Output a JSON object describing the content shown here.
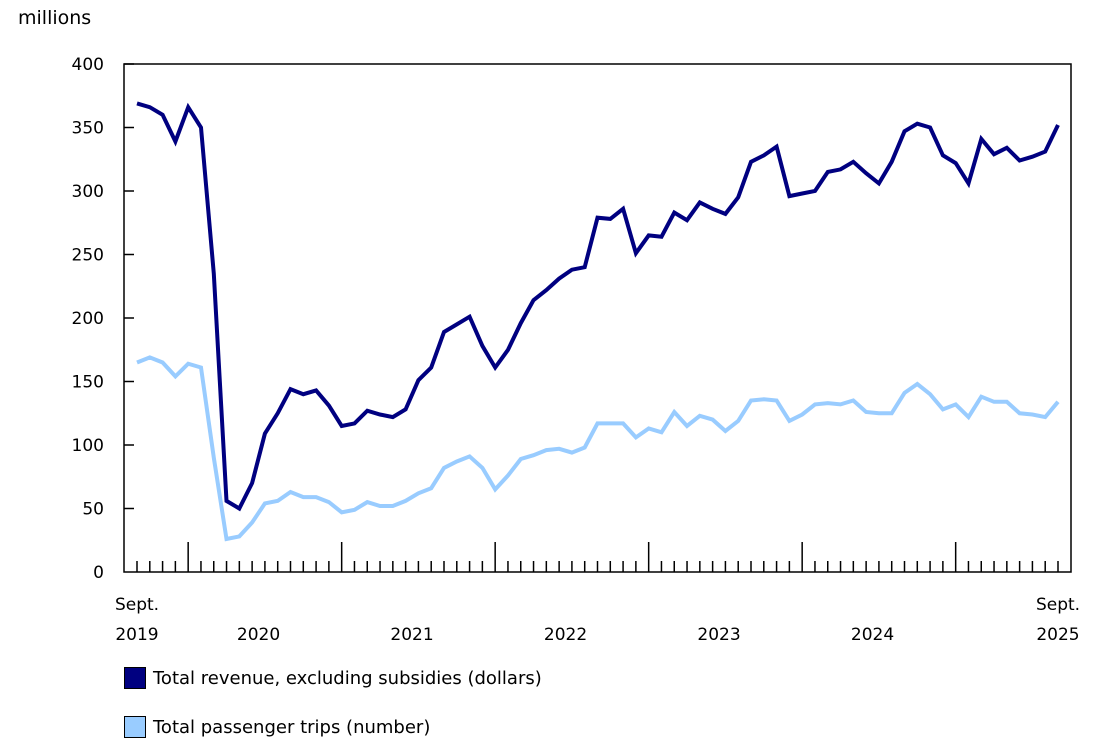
{
  "chart_data": {
    "type": "line",
    "ylabel": "millions",
    "ylim": [
      0,
      400
    ],
    "yticks": [
      "0",
      "50",
      "100",
      "150",
      "200",
      "250",
      "300",
      "350",
      "400"
    ],
    "x_start": "Sept. 2019",
    "x_end": "Sept. 2025",
    "x_labels": [
      {
        "line1": "Sept.",
        "line2": "2019"
      },
      {
        "line1": "",
        "line2": "2020"
      },
      {
        "line1": "",
        "line2": "2021"
      },
      {
        "line1": "",
        "line2": "2022"
      },
      {
        "line1": "",
        "line2": "2023"
      },
      {
        "line1": "",
        "line2": "2024"
      },
      {
        "line1": "Sept.",
        "line2": "2025"
      }
    ],
    "grid": false,
    "legend_position": "bottom",
    "series": [
      {
        "name": "Total revenue, excluding subsidies (dollars)",
        "color": "#000080",
        "values": [
          369,
          366,
          360,
          339,
          366,
          350,
          235,
          56,
          50,
          70,
          109,
          125,
          144,
          140,
          143,
          131,
          115,
          117,
          127,
          124,
          122,
          128,
          151,
          161,
          189,
          195,
          201,
          178,
          161,
          175,
          196,
          214,
          222,
          231,
          238,
          240,
          279,
          278,
          286,
          251,
          265,
          264,
          283,
          277,
          291,
          286,
          282,
          295,
          323,
          328,
          335,
          296,
          298,
          300,
          315,
          317,
          323,
          314,
          306,
          323,
          347,
          353,
          350,
          328,
          322,
          306,
          341,
          329,
          334,
          324,
          327,
          331,
          352
        ]
      },
      {
        "name": "Total passenger trips (number)",
        "color": "#99ccff",
        "values": [
          165,
          169,
          165,
          154,
          164,
          161,
          90,
          26,
          28,
          39,
          54,
          56,
          63,
          59,
          59,
          55,
          47,
          49,
          55,
          52,
          52,
          56,
          62,
          66,
          82,
          87,
          91,
          82,
          65,
          76,
          89,
          92,
          96,
          97,
          94,
          98,
          117,
          117,
          117,
          106,
          113,
          110,
          126,
          115,
          123,
          120,
          111,
          119,
          135,
          136,
          135,
          119,
          124,
          132,
          133,
          132,
          135,
          126,
          125,
          125,
          141,
          148,
          140,
          128,
          132,
          122,
          138,
          134,
          134,
          125,
          124,
          122,
          134
        ]
      }
    ]
  }
}
